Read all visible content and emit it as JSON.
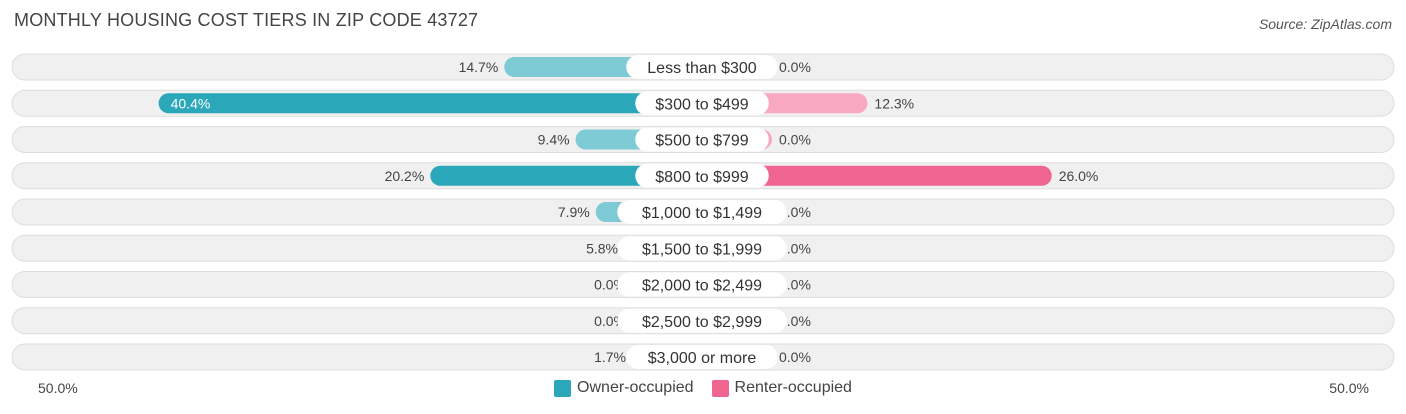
{
  "title": "MONTHLY HOUSING COST TIERS IN ZIP CODE 43727",
  "source": "Source: ZipAtlas.com",
  "axis": {
    "left_label": "50.0%",
    "right_label": "50.0%"
  },
  "legend": [
    {
      "label": "Owner-occupied",
      "color": "#2aa7b8"
    },
    {
      "label": "Renter-occupied",
      "color": "#f06590"
    }
  ],
  "chart_data": {
    "type": "bar",
    "orientation": "diverging-horizontal",
    "categories": [
      "Less than $300",
      "$300 to $499",
      "$500 to $799",
      "$800 to $999",
      "$1,000 to $1,499",
      "$1,500 to $1,999",
      "$2,000 to $2,499",
      "$2,500 to $2,999",
      "$3,000 or more"
    ],
    "series": [
      {
        "name": "Owner-occupied",
        "values": [
          14.7,
          40.4,
          9.4,
          20.2,
          7.9,
          5.8,
          0.0,
          0.0,
          1.7
        ],
        "labels": [
          "14.7%",
          "40.4%",
          "9.4%",
          "20.2%",
          "7.9%",
          "5.8%",
          "0.0%",
          "0.0%",
          "1.7%"
        ]
      },
      {
        "name": "Renter-occupied",
        "values": [
          0.0,
          12.3,
          0.0,
          26.0,
          0.0,
          0.0,
          0.0,
          0.0,
          0.0
        ],
        "labels": [
          "0.0%",
          "12.3%",
          "0.0%",
          "26.0%",
          "0.0%",
          "0.0%",
          "0.0%",
          "0.0%",
          "0.0%"
        ]
      }
    ],
    "xlim": [
      -50,
      50
    ],
    "colors": {
      "owner_strong": "#2aa7b8",
      "owner_light": "#7ecbd5",
      "renter_strong": "#f06590",
      "renter_light": "#f8a9c1",
      "track": "#f0f0f0",
      "track_border": "#dddddd"
    }
  }
}
